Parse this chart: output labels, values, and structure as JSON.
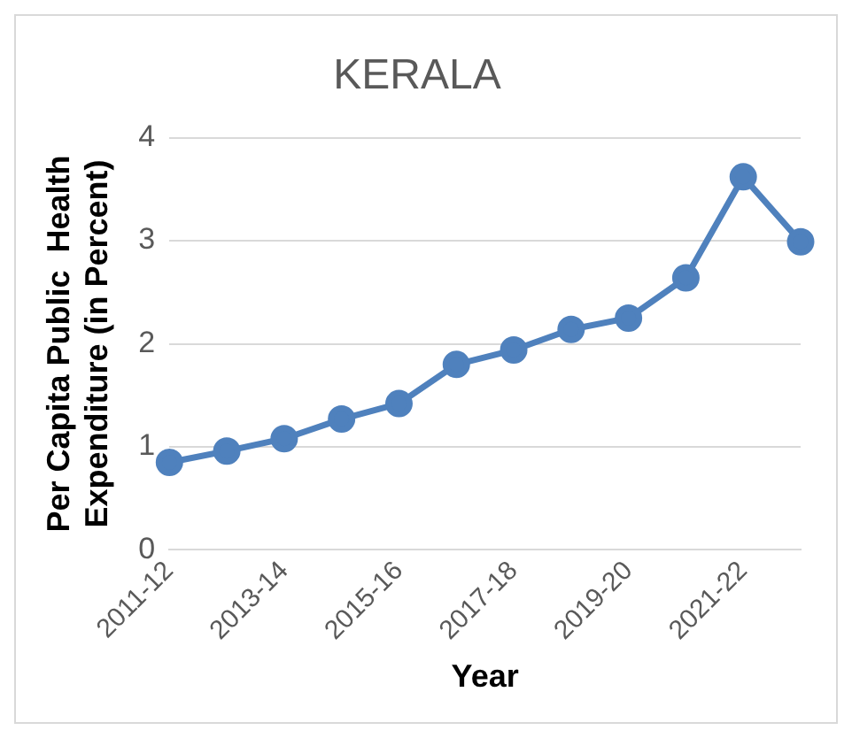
{
  "chart_data": {
    "type": "line",
    "title": "KERALA",
    "xlabel": "Year",
    "ylabel": "Per Capita Public  Health\nExpenditure (in Percent)",
    "categories": [
      "2011-12",
      null,
      "2013-14",
      null,
      "2015-16",
      null,
      "2017-18",
      null,
      "2019-20",
      null,
      "2021-22",
      null
    ],
    "series": [
      {
        "color": "#4f81bd",
        "values": [
          0.85,
          0.96,
          1.08,
          1.27,
          1.42,
          1.8,
          1.94,
          2.14,
          2.25,
          2.64,
          3.62,
          2.99
        ]
      }
    ],
    "ylim": [
      0,
      4
    ],
    "yticks": [
      0,
      1,
      2,
      3,
      4
    ],
    "grid": "y",
    "legend": false,
    "marker": "circle",
    "line_style": "solid"
  }
}
